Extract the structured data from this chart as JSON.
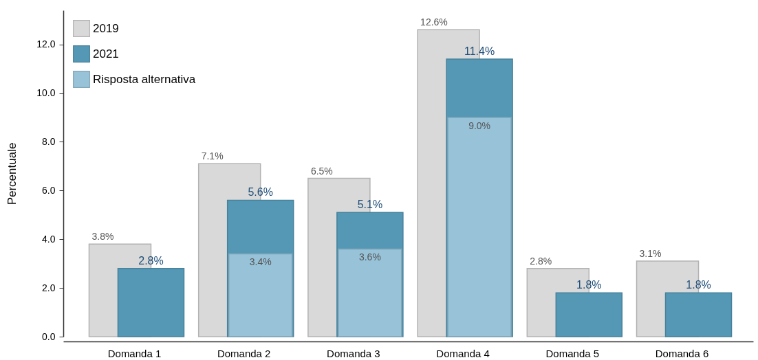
{
  "chart_data": {
    "type": "bar",
    "ylabel": "Percentuale",
    "categories": [
      "Domanda 1",
      "Domanda 2",
      "Domanda 3",
      "Domanda 4",
      "Domanda 5",
      "Domanda 6"
    ],
    "series": [
      {
        "name": "2019",
        "color": "#d9d9d9",
        "values": [
          3.8,
          7.1,
          6.5,
          12.6,
          2.8,
          3.1
        ],
        "value_labels": [
          "3.8%",
          "7.1%",
          "6.5%",
          "12.6%",
          "2.8%",
          "3.1%"
        ]
      },
      {
        "name": "2021",
        "color": "#5498b5",
        "values": [
          2.8,
          5.6,
          5.1,
          11.4,
          1.8,
          1.8
        ],
        "value_labels": [
          "2.8%",
          "5.6%",
          "5.1%",
          "11.4%",
          "1.8%",
          "1.8%"
        ]
      },
      {
        "name": "Risposta alternativa",
        "color": "#97c2d8",
        "values": [
          null,
          3.4,
          3.6,
          9.0,
          null,
          null
        ],
        "value_labels": [
          null,
          "3.4%",
          "3.6%",
          "9.0%",
          null,
          null
        ]
      }
    ],
    "ylim": [
      0,
      13.4
    ],
    "yticks": [
      {
        "value": 0,
        "label": "0.0"
      },
      {
        "value": 2,
        "label": "2.0"
      },
      {
        "value": 4,
        "label": "4.0"
      },
      {
        "value": 6,
        "label": "6.0"
      },
      {
        "value": 8,
        "label": "8.0"
      },
      {
        "value": 10,
        "label": "10.0"
      },
      {
        "value": 12,
        "label": "12.0"
      }
    ],
    "grid": false,
    "legend": "top left"
  }
}
